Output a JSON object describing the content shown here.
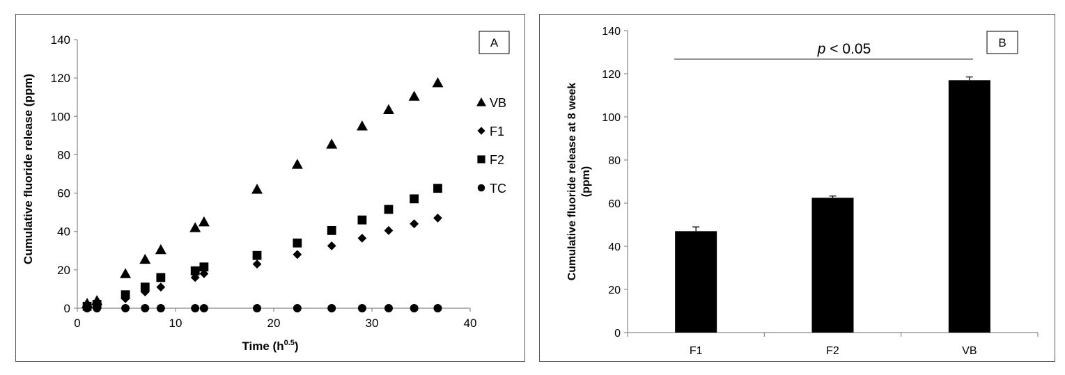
{
  "chart_data": [
    {
      "type": "scatter",
      "panel_label": "A",
      "title": "",
      "xlabel": "Time (h",
      "xlabel_sup": "0.5",
      "xlabel_close": ")",
      "ylabel": "Cumulative fluoride release (ppm)",
      "xlim": [
        0,
        40
      ],
      "ylim": [
        0,
        140
      ],
      "xticks": [
        0,
        10,
        20,
        30,
        40
      ],
      "yticks": [
        0,
        20,
        40,
        60,
        80,
        100,
        120,
        140
      ],
      "legend_position": "right",
      "series": [
        {
          "name": "VB",
          "marker": "triangle",
          "x": [
            1,
            2,
            4.9,
            6.9,
            8.5,
            12,
            12.9,
            18.3,
            22.4,
            25.9,
            29,
            31.7,
            34.3,
            36.7
          ],
          "y": [
            2.5,
            4,
            18,
            25.5,
            30.5,
            42,
            45,
            62,
            75,
            85.5,
            95,
            103.5,
            110.5,
            117.5
          ]
        },
        {
          "name": "F1",
          "marker": "diamond",
          "x": [
            1,
            2,
            4.9,
            6.9,
            8.5,
            12,
            12.9,
            18.3,
            22.4,
            25.9,
            29,
            31.7,
            34.3,
            36.7
          ],
          "y": [
            0.5,
            1.2,
            5,
            8.5,
            11,
            16,
            18,
            23,
            28,
            32.5,
            36.5,
            40.5,
            44,
            47
          ]
        },
        {
          "name": "F2",
          "marker": "square",
          "x": [
            1,
            2,
            4.9,
            6.9,
            8.5,
            12,
            12.9,
            18.3,
            22.4,
            25.9,
            29,
            31.7,
            34.3,
            36.7
          ],
          "y": [
            1,
            2,
            7,
            11,
            16,
            19.5,
            21.5,
            27.5,
            34,
            40.5,
            46,
            51.5,
            57,
            62.5
          ]
        },
        {
          "name": "TC",
          "marker": "circle",
          "x": [
            1,
            2,
            4.9,
            6.9,
            8.5,
            12,
            12.9,
            18.3,
            22.4,
            25.9,
            29,
            31.7,
            34.3,
            36.7
          ],
          "y": [
            0,
            0,
            0,
            0,
            0,
            0,
            0,
            0,
            0,
            0,
            0,
            0,
            0,
            0
          ]
        }
      ]
    },
    {
      "type": "bar",
      "panel_label": "B",
      "title": "",
      "xlabel": "",
      "ylabel_line1": "Cumulative fluoride release at 8 week",
      "ylabel_line2": "(ppm)",
      "ylim": [
        0,
        140
      ],
      "yticks": [
        0,
        20,
        40,
        60,
        80,
        100,
        120,
        140
      ],
      "categories": [
        "F1",
        "F2",
        "VB"
      ],
      "values": [
        47,
        62.5,
        117
      ],
      "errors": [
        2,
        0.8,
        1.5
      ],
      "annotation": {
        "p_italic": "p",
        "rest": " < 0.05",
        "from": "F1",
        "to": "VB"
      }
    }
  ]
}
